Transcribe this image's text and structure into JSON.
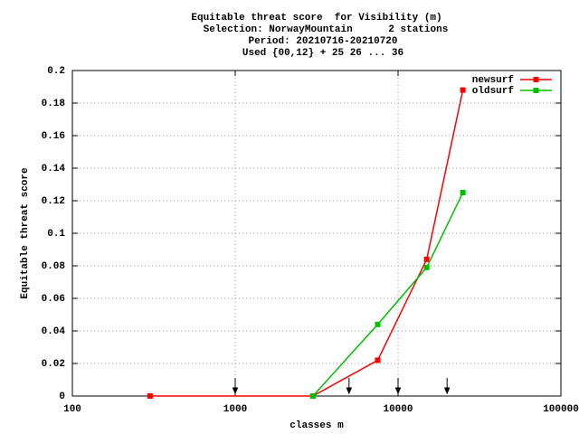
{
  "chart_data": {
    "type": "line",
    "title": "Equitable threat score  for Visibility (m)",
    "subtitle": [
      "Selection: NorwayMountain      2 stations",
      "Period: 20210716-20210720",
      "Used {00,12} + 25 26 ... 36"
    ],
    "x_label": "classes m",
    "y_label": "Equitable threat score",
    "x": [
      300,
      3000,
      7500,
      15000,
      25000
    ],
    "series": [
      {
        "name": "newsurf",
        "color": "#ff0000",
        "values": [
          0,
          0,
          0.022,
          0.084,
          0.188
        ]
      },
      {
        "name": "oldsurf",
        "color": "#00c000",
        "values": [
          null,
          0,
          0.044,
          0.079,
          0.125
        ]
      }
    ],
    "xlim": [
      100,
      100000
    ],
    "xticks": [
      100,
      1000,
      10000,
      100000
    ],
    "xscale": "log",
    "ylim": [
      0,
      0.2
    ],
    "yticks": [
      0,
      0.02,
      0.04,
      0.06,
      0.08,
      0.1,
      0.12,
      0.14,
      0.16,
      0.18,
      0.2
    ],
    "grid": true,
    "legend": "top-right",
    "threshold_markers": [
      1000,
      5000,
      10000,
      20000
    ]
  }
}
